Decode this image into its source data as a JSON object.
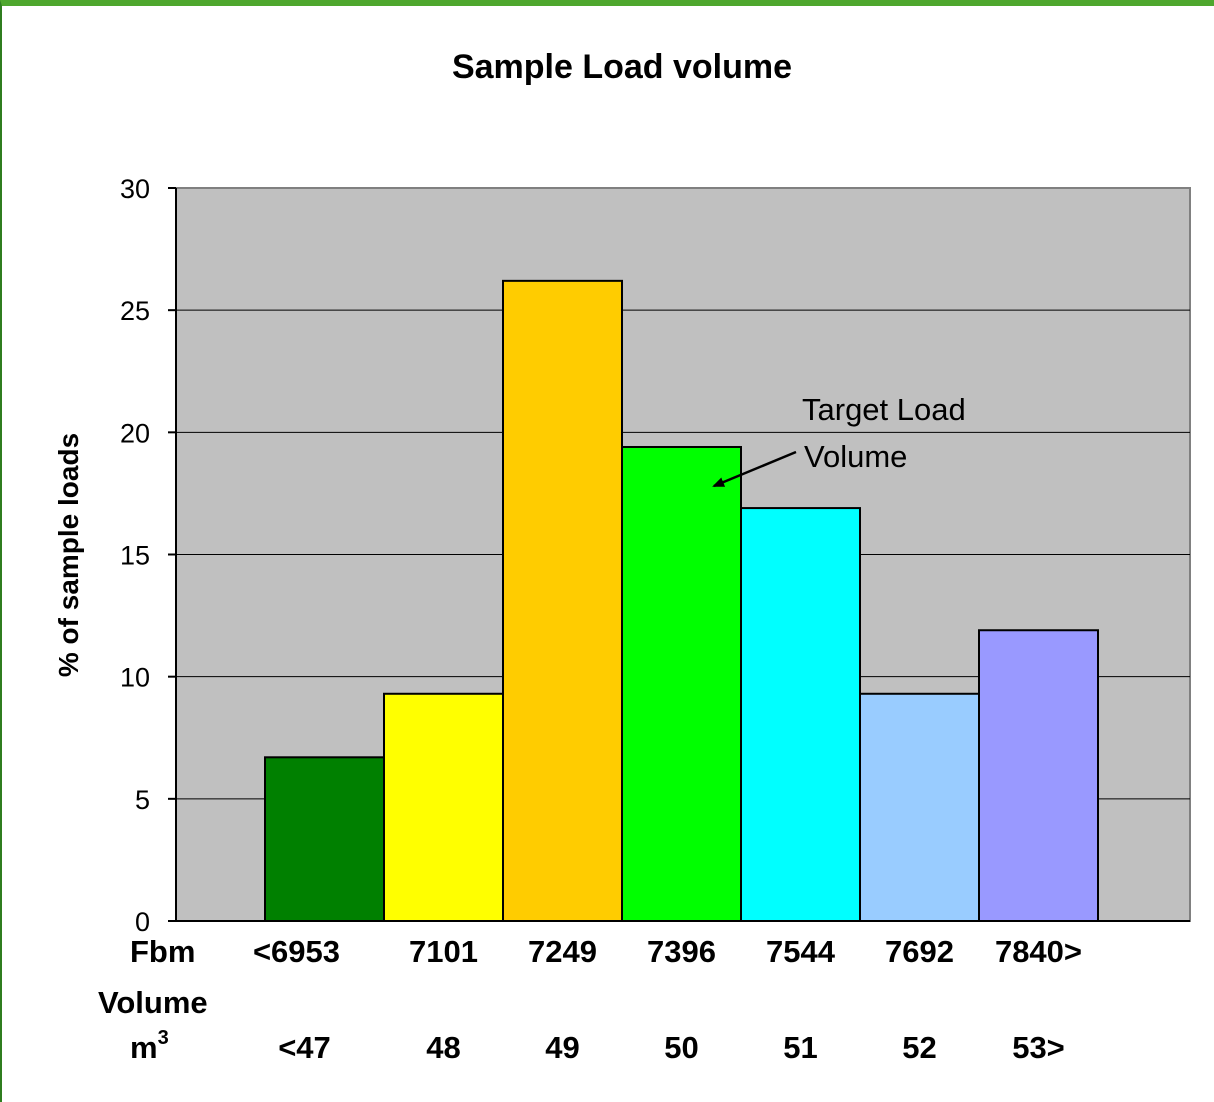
{
  "chart_data": {
    "type": "bar",
    "title": "Sample Load volume",
    "ylabel": "% of sample loads",
    "ylim": [
      0,
      30
    ],
    "yticks": [
      "0",
      "5",
      "10",
      "15",
      "20",
      "25",
      "30"
    ],
    "grid": true,
    "categories": [
      "<6953",
      "7101",
      "7249",
      "7396",
      "7544",
      "7692",
      "7840>"
    ],
    "values": [
      6.7,
      9.3,
      26.2,
      19.4,
      16.9,
      9.3,
      11.9
    ],
    "colors": [
      "#008000",
      "#ffff00",
      "#ffcc00",
      "#00ff00",
      "#00ffff",
      "#99ccff",
      "#9999ff"
    ],
    "plot_background": "#c0c0c0",
    "row1_label": "Fbm",
    "row2_label_line1": "Volume",
    "row2_label_line2": "m",
    "row2_label_sup": "3",
    "row2_values": [
      "<47",
      "48",
      "49",
      "50",
      "51",
      "52",
      "53>"
    ],
    "annotation": {
      "line1": "Target Load",
      "line2": "Volume",
      "points_to_category": "7396"
    }
  }
}
